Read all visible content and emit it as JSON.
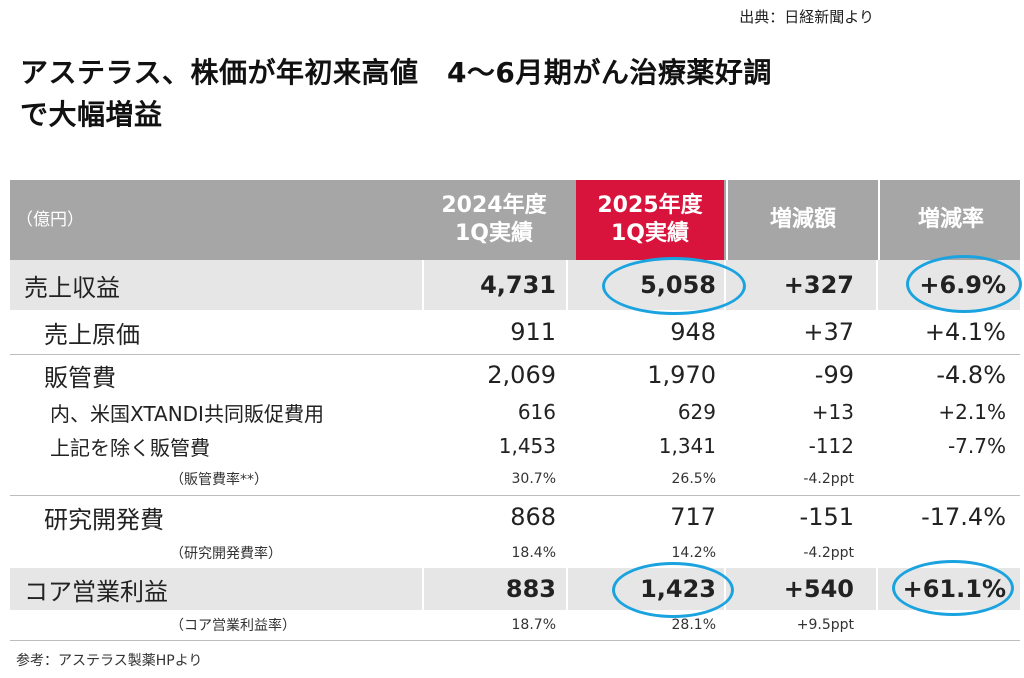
{
  "source": "出典：日経新聞より",
  "title": {
    "line1": "アステラス、株価が年初来高値　4〜6月期がん治療薬好調",
    "line2": "で大幅増益"
  },
  "table": {
    "header": {
      "unit": "（億円）",
      "col_2024": "2024年度\n1Q実績",
      "col_2025": "2025年度\n1Q実績",
      "col_diff": "増減額",
      "col_rate": "増減率"
    },
    "rows": [
      {
        "label": "売上収益",
        "v2024": "4,731",
        "v2025": "5,058",
        "diff": "+327",
        "rate": "+6.9%"
      },
      {
        "label": "売上原価",
        "v2024": "911",
        "v2025": "948",
        "diff": "+37",
        "rate": "+4.1%"
      },
      {
        "label": "販管費",
        "v2024": "2,069",
        "v2025": "1,970",
        "diff": "-99",
        "rate": "-4.8%"
      },
      {
        "label": "内、米国XTANDI共同販促費用",
        "v2024": "616",
        "v2025": "629",
        "diff": "+13",
        "rate": "+2.1%"
      },
      {
        "label": "上記を除く販管費",
        "v2024": "1,453",
        "v2025": "1,341",
        "diff": "-112",
        "rate": "-7.7%"
      },
      {
        "label": "（販管費率**）",
        "v2024": "30.7%",
        "v2025": "26.5%",
        "diff": "-4.2ppt",
        "rate": ""
      },
      {
        "label": "研究開発費",
        "v2024": "868",
        "v2025": "717",
        "diff": "-151",
        "rate": "-17.4%"
      },
      {
        "label": "（研究開発費率）",
        "v2024": "18.4%",
        "v2025": "14.2%",
        "diff": "-4.2ppt",
        "rate": ""
      },
      {
        "label": "コア営業利益",
        "v2024": "883",
        "v2025": "1,423",
        "diff": "+540",
        "rate": "+61.1%"
      },
      {
        "label": "（コア営業利益率）",
        "v2024": "18.7%",
        "v2025": "28.1%",
        "diff": "+9.5ppt",
        "rate": ""
      }
    ]
  },
  "footer": "参考：アステラス製薬HPより",
  "colors": {
    "header_gray": "#a6a6a6",
    "highlight_red": "#d9143c",
    "row_shade": "#e6e6e6",
    "circle_blue": "#1aa3df"
  }
}
